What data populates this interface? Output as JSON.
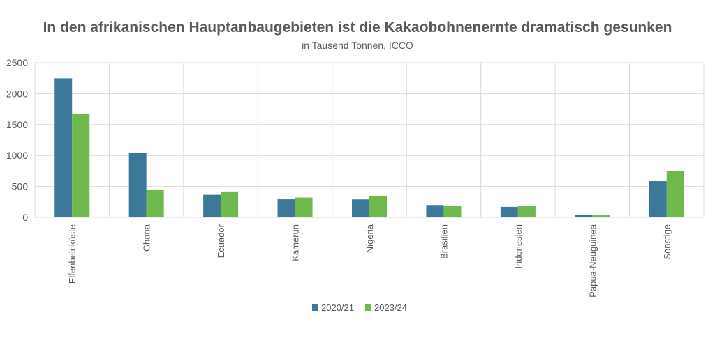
{
  "chart_data": {
    "type": "bar",
    "title": "In den afrikanischen Hauptanbaugebieten ist die Kakaobohnenernte dramatisch gesunken",
    "subtitle": "in Tausend Tonnen, ICCO",
    "categories": [
      "Elfenbeinküste",
      "Ghana",
      "Ecuador",
      "Kamerun",
      "Nigeria",
      "Brasilien",
      "Indonesien",
      "Papua-Neuguinea",
      "Sonstige"
    ],
    "series": [
      {
        "name": "2020/21",
        "color": "#3e7898",
        "values": [
          2248,
          1047,
          364,
          292,
          290,
          200,
          170,
          42,
          585
        ]
      },
      {
        "name": "2023/24",
        "color": "#6fb94f",
        "values": [
          1670,
          447,
          418,
          320,
          350,
          180,
          180,
          40,
          750
        ]
      }
    ],
    "ylim": [
      0,
      2500
    ],
    "yticks": [
      0,
      500,
      1000,
      1500,
      2000,
      2500
    ],
    "grid": true,
    "legend_position": "bottom"
  }
}
